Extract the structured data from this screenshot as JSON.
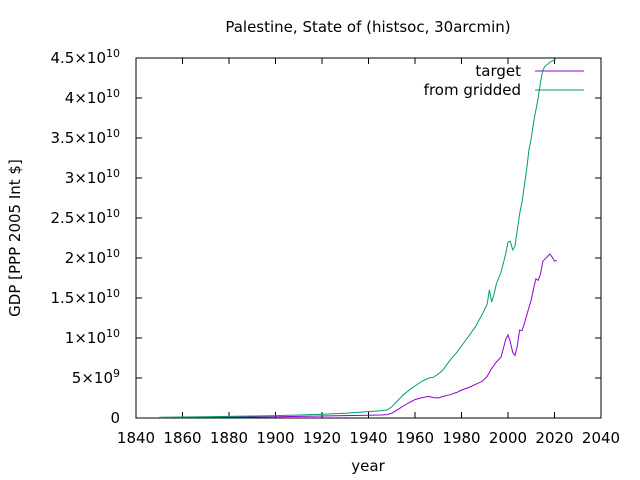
{
  "chart_data": {
    "type": "line",
    "title": "Palestine, State of (histsoc, 30arcmin)",
    "xlabel": "year",
    "ylabel": "GDP [PPP 2005 Int $]",
    "xlim": [
      1840,
      2040
    ],
    "ylim": [
      0,
      45000000000.0
    ],
    "xticks": [
      1840,
      1860,
      1880,
      1900,
      1920,
      1940,
      1960,
      1980,
      2000,
      2020,
      2040
    ],
    "xtick_labels": [
      "1840",
      "1860",
      "1880",
      "1900",
      "1920",
      "1940",
      "1960",
      "1980",
      "2000",
      "2020",
      "2040"
    ],
    "yticks": [
      {
        "value": 0,
        "mantissa": "0",
        "exp": ""
      },
      {
        "value": 5000000000.0,
        "mantissa": "5×10",
        "exp": "9"
      },
      {
        "value": 10000000000.0,
        "mantissa": "1×10",
        "exp": "10"
      },
      {
        "value": 15000000000.0,
        "mantissa": "1.5×10",
        "exp": "10"
      },
      {
        "value": 20000000000.0,
        "mantissa": "2×10",
        "exp": "10"
      },
      {
        "value": 25000000000.0,
        "mantissa": "2.5×10",
        "exp": "10"
      },
      {
        "value": 30000000000.0,
        "mantissa": "3×10",
        "exp": "10"
      },
      {
        "value": 35000000000.0,
        "mantissa": "3.5×10",
        "exp": "10"
      },
      {
        "value": 40000000000.0,
        "mantissa": "4×10",
        "exp": "10"
      },
      {
        "value": 45000000000.0,
        "mantissa": "4.5×10",
        "exp": "10"
      }
    ],
    "grid": false,
    "legend_position": "top-right",
    "series": [
      {
        "name": "target",
        "color": "#9400d3",
        "x": [
          1850,
          1860,
          1870,
          1880,
          1890,
          1900,
          1910,
          1920,
          1930,
          1940,
          1945,
          1948,
          1950,
          1952,
          1955,
          1958,
          1960,
          1963,
          1966,
          1968,
          1970,
          1972,
          1975,
          1978,
          1980,
          1983,
          1986,
          1989,
          1991,
          1993,
          1995,
          1997,
          1999,
          2000,
          2001,
          2002,
          2003,
          2004,
          2005,
          2006,
          2007,
          2008,
          2009,
          2010,
          2011,
          2012,
          2013,
          2014,
          2015,
          2016,
          2017,
          2018,
          2019,
          2020,
          2021
        ],
        "y": [
          50000000.0,
          70000000.0,
          90000000.0,
          110000000.0,
          130000000.0,
          150000000.0,
          200000000.0,
          250000000.0,
          300000000.0,
          350000000.0,
          380000000.0,
          420000000.0,
          600000000.0,
          950000000.0,
          1500000000.0,
          2000000000.0,
          2300000000.0,
          2550000000.0,
          2700000000.0,
          2550000000.0,
          2500000000.0,
          2700000000.0,
          2900000000.0,
          3200000000.0,
          3500000000.0,
          3800000000.0,
          4200000000.0,
          4600000000.0,
          5200000000.0,
          6200000000.0,
          7000000000.0,
          7600000000.0,
          9800000000.0,
          10400000000.0,
          9500000000.0,
          8200000000.0,
          7800000000.0,
          9000000000.0,
          11000000000.0,
          10900000000.0,
          11800000000.0,
          12800000000.0,
          13800000000.0,
          14800000000.0,
          16200000000.0,
          17400000000.0,
          17200000000.0,
          18000000000.0,
          19600000000.0,
          19900000000.0,
          20200000000.0,
          20500000000.0,
          20100000000.0,
          19600000000.0,
          19700000000.0
        ]
      },
      {
        "name": "from gridded",
        "color": "#009e73",
        "x": [
          1850,
          1860,
          1870,
          1880,
          1890,
          1900,
          1910,
          1920,
          1930,
          1940,
          1945,
          1948,
          1950,
          1952,
          1955,
          1958,
          1960,
          1963,
          1966,
          1968,
          1970,
          1972,
          1975,
          1978,
          1980,
          1983,
          1986,
          1989,
          1991,
          1992,
          1993,
          1994,
          1995,
          1997,
          1999,
          2000,
          2001,
          2002,
          2003,
          2004,
          2005,
          2006,
          2007,
          2008,
          2009,
          2010,
          2011,
          2012,
          2013,
          2014,
          2015,
          2016,
          2017,
          2018,
          2019,
          2020,
          2021
        ],
        "y": [
          100000000.0,
          130000000.0,
          160000000.0,
          200000000.0,
          250000000.0,
          300000000.0,
          380000000.0,
          480000000.0,
          600000000.0,
          800000000.0,
          900000000.0,
          1000000000.0,
          1400000000.0,
          2000000000.0,
          2900000000.0,
          3600000000.0,
          4000000000.0,
          4600000000.0,
          5000000000.0,
          5100000000.0,
          5500000000.0,
          6000000000.0,
          7200000000.0,
          8200000000.0,
          9000000000.0,
          10200000000.0,
          11400000000.0,
          13000000000.0,
          14200000000.0,
          16000000000.0,
          14500000000.0,
          15500000000.0,
          16800000000.0,
          18200000000.0,
          20500000000.0,
          22000000000.0,
          22100000000.0,
          21000000000.0,
          21500000000.0,
          23500000000.0,
          25500000000.0,
          27000000000.0,
          29000000000.0,
          31000000000.0,
          33500000000.0,
          35000000000.0,
          37000000000.0,
          38500000000.0,
          40000000000.0,
          42000000000.0,
          43500000000.0,
          44000000000.0,
          44200000000.0,
          44500000000.0,
          44600000000.0,
          44800000000.0,
          45000000000.0
        ]
      }
    ]
  }
}
